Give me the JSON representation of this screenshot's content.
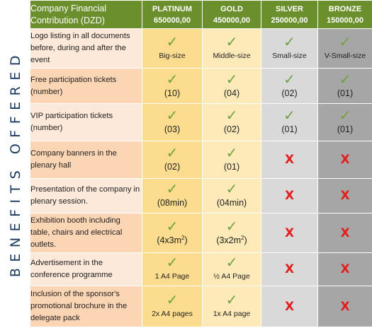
{
  "side_label": "BENEFITS OFFERED",
  "header": {
    "label": "Company Financial Contribution (DZD)",
    "tiers": [
      {
        "name": "PLATINUM",
        "price": "650000,00"
      },
      {
        "name": "GOLD",
        "price": "450000,00"
      },
      {
        "name": "SILVER",
        "price": "250000,00"
      },
      {
        "name": "BRONZE",
        "price": "150000,00"
      }
    ]
  },
  "rows": [
    {
      "benefit": "Logo listing in all documents before, during and after the event",
      "platinum": "Big-size",
      "gold": "Middle-size",
      "silver": "Small-size",
      "bronze": "V-Small-size"
    },
    {
      "benefit": "Free participation tickets (number)",
      "platinum": "(10)",
      "gold": "(04)",
      "silver": "(02)",
      "bronze": "(01)"
    },
    {
      "benefit": "VIP participation tickets (number)",
      "platinum": "(03)",
      "gold": "(02)",
      "silver": "(01)",
      "bronze": "(01)"
    },
    {
      "benefit": "Company banners in the plenary hall",
      "platinum": "(02)",
      "gold": "(01)"
    },
    {
      "benefit": "Presentation of the company in plenary session.",
      "platinum": "(08min)",
      "gold": "(04min)"
    },
    {
      "benefit": "Exhibition booth including table, chairs and electrical outlets.",
      "platinum": "(4x3m",
      "platinum_sup": "2",
      "platinum_end": ")",
      "gold": "(3x2m",
      "gold_sup": "2",
      "gold_end": ")"
    },
    {
      "benefit": "Advertisement in the conference programme",
      "platinum": "1 A4 Page",
      "gold": "½ A4 Page"
    },
    {
      "benefit": "Inclusion of the sponsor's promotional brochure in the delegate pack",
      "platinum": "2x A4 pages",
      "gold": "1x A4 page"
    }
  ],
  "marks": {
    "check": "✓",
    "cross": "X"
  },
  "colors": {
    "header": "#6b8f2c",
    "check": "#6fa33c",
    "cross": "#e02020",
    "platinum": "#fcdc8e",
    "gold": "#fdeab8",
    "silver": "#d9d9d9",
    "bronze": "#a6a6a6"
  }
}
